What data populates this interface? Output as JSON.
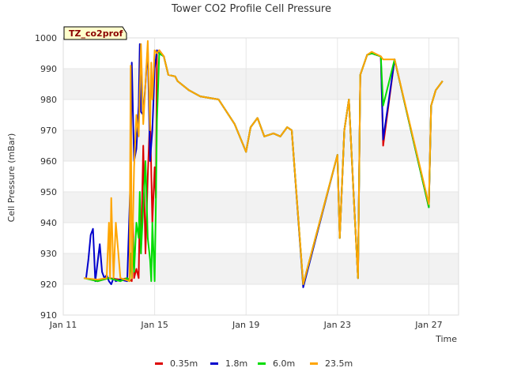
{
  "chart_data": {
    "type": "line",
    "title": "Tower CO2 Profile Cell Pressure",
    "xlabel": "Time",
    "ylabel": "Cell Pressure (mBar)",
    "tag": "TZ_co2prof",
    "ylim": [
      910,
      1000
    ],
    "xlim": [
      0,
      17.3
    ],
    "y_ticks": [
      910,
      920,
      930,
      940,
      950,
      960,
      970,
      980,
      990,
      1000
    ],
    "x_ticks": [
      {
        "value": 0,
        "label": "Jan 11"
      },
      {
        "value": 4,
        "label": "Jan 15"
      },
      {
        "value": 8,
        "label": "Jan 19"
      },
      {
        "value": 12,
        "label": "Jan 23"
      },
      {
        "value": 16,
        "label": "Jan 27"
      }
    ],
    "grid": true,
    "legend_position": "bottom",
    "series": [
      {
        "name": "0.35m",
        "color": "#dd0000",
        "x": [
          0.95,
          1.5,
          2.0,
          2.5,
          2.8,
          3.0,
          3.05,
          3.1,
          3.2,
          3.3,
          3.35,
          3.4,
          3.5,
          3.6,
          3.7,
          3.8,
          3.9,
          4.0,
          4.05,
          4.1,
          4.2,
          4.4,
          4.6,
          4.9,
          5.0,
          5.5,
          6.0,
          6.8,
          7.5,
          8.0,
          8.2,
          8.5,
          8.8,
          9.2,
          9.5,
          9.8,
          10.0,
          10.5,
          12.0,
          12.1,
          12.3,
          12.5,
          12.7,
          12.9,
          13.0,
          13.3,
          13.5,
          13.9,
          14.0,
          14.5,
          16.0,
          16.1,
          16.3,
          16.6
        ],
        "y": [
          922,
          921,
          922,
          921.5,
          922,
          921,
          940,
          922,
          925,
          922,
          945,
          930,
          965,
          930,
          955,
          975,
          940,
          958,
          948,
          995,
          996,
          994,
          988,
          987.5,
          986,
          983,
          981,
          980,
          972,
          963,
          971,
          974,
          968,
          969,
          968,
          971,
          970,
          920,
          962,
          935,
          970,
          980,
          950,
          922,
          988,
          994.5,
          995,
          994,
          965,
          993,
          945,
          978,
          983,
          986
        ]
      },
      {
        "name": "1.8m",
        "color": "#0000cc",
        "x": [
          1.0,
          1.1,
          1.2,
          1.3,
          1.35,
          1.4,
          1.5,
          1.6,
          1.7,
          1.8,
          1.9,
          2.0,
          2.1,
          2.2,
          2.3,
          2.5,
          2.8,
          2.95,
          3.0,
          3.1,
          3.2,
          3.3,
          3.35,
          3.4,
          3.5,
          3.6,
          3.7,
          3.8,
          3.9,
          4.0,
          4.1,
          4.2,
          4.4,
          4.6,
          4.9,
          5.0,
          5.5,
          6.0,
          6.8,
          7.5,
          8.0,
          8.2,
          8.5,
          8.8,
          9.2,
          9.5,
          9.8,
          10.0,
          10.5,
          12.0,
          12.1,
          12.3,
          12.5,
          12.7,
          12.9,
          13.0,
          13.3,
          13.5,
          13.9,
          14.0,
          14.5,
          16.0,
          16.1,
          16.3,
          16.6
        ],
        "y": [
          922,
          928,
          936,
          938,
          930,
          921,
          927,
          933,
          924,
          922,
          923,
          921,
          920,
          922,
          921,
          921.5,
          921,
          956,
          992,
          960,
          964,
          978,
          998,
          976,
          975,
          985,
          997,
          960,
          970,
          990,
          996,
          995,
          994,
          988,
          987.5,
          986,
          983,
          981,
          980,
          972,
          963,
          971,
          974,
          968,
          969,
          968,
          971,
          970,
          919,
          962,
          935,
          970,
          980,
          950,
          922,
          988,
          994.5,
          995,
          994,
          967,
          993,
          945,
          978,
          983,
          986
        ]
      },
      {
        "name": "6.0m",
        "color": "#00dd00",
        "x": [
          0.9,
          1.5,
          2.0,
          2.5,
          2.8,
          2.9,
          2.95,
          3.0,
          3.05,
          3.1,
          3.2,
          3.3,
          3.35,
          3.4,
          3.5,
          3.6,
          3.7,
          3.8,
          3.85,
          3.9,
          4.0,
          4.05,
          4.1,
          4.2,
          4.4,
          4.6,
          4.9,
          5.0,
          5.5,
          6.0,
          6.8,
          7.5,
          8.0,
          8.2,
          8.5,
          8.8,
          9.2,
          9.5,
          9.8,
          10.0,
          10.5,
          12.0,
          12.1,
          12.3,
          12.5,
          12.7,
          12.9,
          13.0,
          13.3,
          13.5,
          13.9,
          14.0,
          14.5,
          16.0,
          16.1,
          16.3,
          16.6
        ],
        "y": [
          922,
          921,
          922,
          921,
          922,
          921,
          930,
          922,
          935,
          924,
          940,
          935,
          950,
          930,
          945,
          960,
          935,
          928,
          921,
          940,
          921,
          945,
          973,
          995,
          994,
          988,
          987.5,
          986,
          983,
          981,
          980,
          972,
          963,
          971,
          974,
          968,
          969,
          968,
          971,
          970,
          920,
          962,
          935,
          970,
          980,
          950,
          922,
          988,
          994.5,
          995,
          994,
          978,
          993,
          945,
          978,
          983,
          986
        ]
      },
      {
        "name": "23.5m",
        "color": "#ffa500",
        "x": [
          0.9,
          1.5,
          1.9,
          2.0,
          2.05,
          2.1,
          2.2,
          2.3,
          2.5,
          2.9,
          2.95,
          3.0,
          3.1,
          3.2,
          3.3,
          3.4,
          3.5,
          3.6,
          3.7,
          3.8,
          3.85,
          3.9,
          4.0,
          4.1,
          4.2,
          4.4,
          4.6,
          4.9,
          5.0,
          5.5,
          6.0,
          6.8,
          7.5,
          8.0,
          8.2,
          8.5,
          8.8,
          9.2,
          9.5,
          9.8,
          10.0,
          10.5,
          12.0,
          12.1,
          12.3,
          12.5,
          12.7,
          12.9,
          13.0,
          13.3,
          13.5,
          13.9,
          14.0,
          14.5,
          16.0,
          16.1,
          16.3,
          16.6
        ],
        "y": [
          922,
          921.5,
          922,
          940,
          922,
          948,
          922,
          940,
          922,
          921,
          991,
          922,
          958,
          975,
          968,
          998,
          972,
          985,
          999,
          970,
          992,
          980,
          996,
          995,
          996,
          994,
          988,
          987.5,
          986,
          983,
          981,
          980,
          972,
          963,
          971,
          974,
          968,
          969,
          968,
          971,
          970,
          920,
          962,
          935,
          970,
          980,
          950,
          922,
          988,
          994.5,
          995.5,
          994,
          993,
          993,
          946,
          978,
          983,
          986
        ]
      }
    ]
  }
}
